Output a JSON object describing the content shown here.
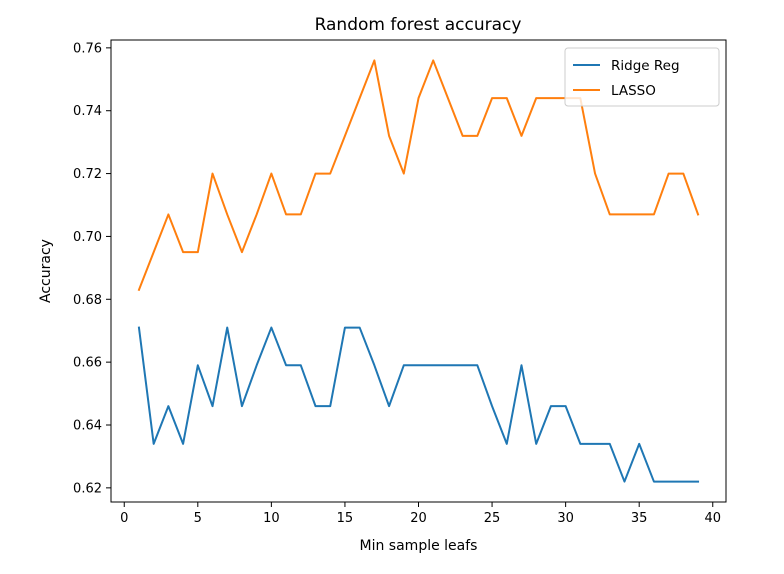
{
  "chart_data": {
    "type": "line",
    "title": "Random forest accuracy",
    "xlabel": "Min sample leafs",
    "ylabel": "Accuracy",
    "xlim": [
      -0.9,
      40.9
    ],
    "ylim": [
      0.6155,
      0.7625
    ],
    "xticks": [
      0,
      5,
      10,
      15,
      20,
      25,
      30,
      35,
      40
    ],
    "xtick_labels": [
      "0",
      "5",
      "10",
      "15",
      "20",
      "25",
      "30",
      "35",
      "40"
    ],
    "yticks": [
      0.62,
      0.64,
      0.66,
      0.68,
      0.7,
      0.72,
      0.74,
      0.76
    ],
    "ytick_labels": [
      "0.62",
      "0.64",
      "0.66",
      "0.68",
      "0.70",
      "0.72",
      "0.74",
      "0.76"
    ],
    "grid": false,
    "legend_position": "top-right",
    "x": [
      1,
      2,
      3,
      4,
      5,
      6,
      7,
      8,
      9,
      10,
      11,
      12,
      13,
      14,
      15,
      16,
      17,
      18,
      19,
      20,
      21,
      22,
      23,
      24,
      25,
      26,
      27,
      28,
      29,
      30,
      31,
      32,
      33,
      34,
      35,
      36,
      37,
      38,
      39
    ],
    "series": [
      {
        "name": "Ridge Reg",
        "color": "#1f77b4",
        "values": [
          0.671,
          0.634,
          0.646,
          0.634,
          0.659,
          0.646,
          0.671,
          0.646,
          0.659,
          0.671,
          0.659,
          0.659,
          0.646,
          0.646,
          0.671,
          0.671,
          0.659,
          0.646,
          0.659,
          0.659,
          0.659,
          0.659,
          0.659,
          0.659,
          0.646,
          0.634,
          0.659,
          0.634,
          0.646,
          0.646,
          0.634,
          0.634,
          0.634,
          0.622,
          0.634,
          0.622,
          0.622,
          0.622,
          0.622
        ]
      },
      {
        "name": "LASSO",
        "color": "#ff7f0e",
        "values": [
          0.683,
          0.695,
          0.707,
          0.695,
          0.695,
          0.72,
          0.707,
          0.695,
          0.707,
          0.72,
          0.707,
          0.707,
          0.72,
          0.72,
          0.732,
          0.744,
          0.756,
          0.732,
          0.72,
          0.744,
          0.756,
          0.744,
          0.732,
          0.732,
          0.744,
          0.744,
          0.732,
          0.744,
          0.744,
          0.744,
          0.744,
          0.72,
          0.707,
          0.707,
          0.707,
          0.707,
          0.72,
          0.72,
          0.707
        ]
      }
    ]
  }
}
